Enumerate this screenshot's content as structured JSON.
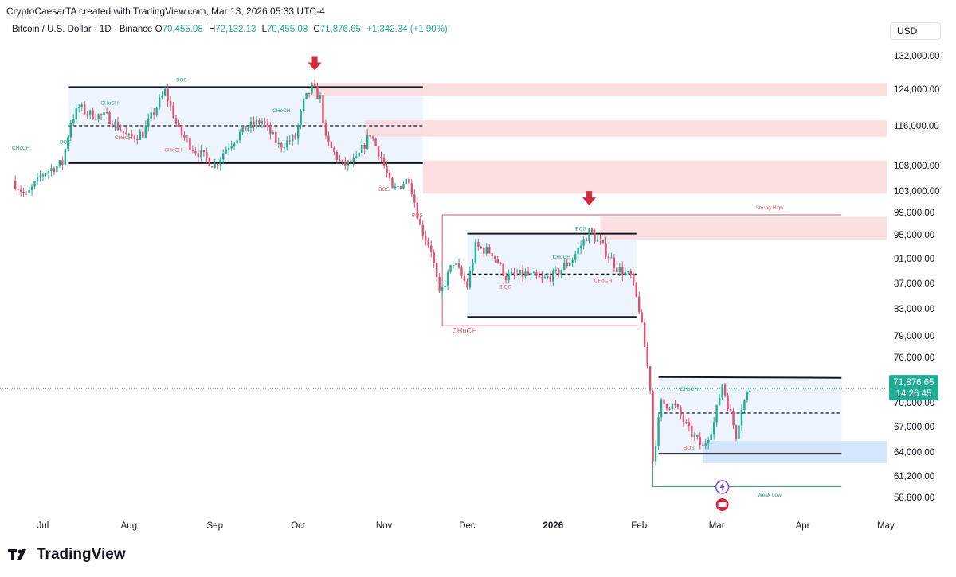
{
  "header": {
    "credit": "CryptoCaesarTA created with TradingView.com, Mar 13, 2026 05:33 UTC-4",
    "symbol": "Bitcoin / U.S. Dollar · 1D · Binance",
    "ohlc": [
      {
        "key": "O",
        "value": "70,455.08"
      },
      {
        "key": "H",
        "value": "72,132.13"
      },
      {
        "key": "L",
        "value": "70,455.08"
      },
      {
        "key": "C",
        "value": "71,876.65"
      }
    ],
    "change": "+1,342.34 (+1.90%)",
    "currency": "USD"
  },
  "footer": {
    "brand": "TradingView"
  },
  "colors": {
    "up": "#22ab94",
    "down": "#e0506a",
    "supply_zone": "#fad9dc",
    "demand_zone": "#cfe3fb",
    "range_fill": "#eef4fd",
    "price_badge": "#22ab94",
    "structure_up": "#2e9e82",
    "structure_down": "#d2585f"
  },
  "chart_data": {
    "type": "candlestick",
    "price_axis": {
      "ticks": [
        "132,000.00",
        "124,000.00",
        "116,000.00",
        "108,000.00",
        "103,000.00",
        "99,000.00",
        "95,000.00",
        "91,000.00",
        "87,000.00",
        "83,000.00",
        "79,000.00",
        "76,000.00",
        "70,000.00",
        "67,000.00",
        "64,000.00",
        "61,200.00",
        "58,800.00"
      ],
      "current_price": "71,876.65",
      "countdown": "14:26:45"
    },
    "time_axis": {
      "ticks": [
        {
          "label": "Jul",
          "date": "2025-07-01"
        },
        {
          "label": "Aug",
          "date": "2025-08-01"
        },
        {
          "label": "Sep",
          "date": "2025-09-01"
        },
        {
          "label": "Oct",
          "date": "2025-10-01"
        },
        {
          "label": "Nov",
          "date": "2025-11-01"
        },
        {
          "label": "Dec",
          "date": "2025-12-01"
        },
        {
          "label": "2026",
          "date": "2026-01-01",
          "bold": true
        },
        {
          "label": "Feb",
          "date": "2026-02-01"
        },
        {
          "label": "Mar",
          "date": "2026-03-01"
        },
        {
          "label": "Apr",
          "date": "2026-04-01"
        },
        {
          "label": "May",
          "date": "2026-05-01"
        }
      ]
    },
    "price_path": [
      [
        "2025-06-20",
        105000
      ],
      [
        "2025-06-25",
        102000
      ],
      [
        "2025-07-01",
        106500
      ],
      [
        "2025-07-08",
        108500
      ],
      [
        "2025-07-11",
        117000
      ],
      [
        "2025-07-14",
        120000
      ],
      [
        "2025-07-18",
        118500
      ],
      [
        "2025-07-24",
        118000
      ],
      [
        "2025-08-01",
        113500
      ],
      [
        "2025-08-06",
        114500
      ],
      [
        "2025-08-10",
        119000
      ],
      [
        "2025-08-14",
        123500
      ],
      [
        "2025-08-19",
        115000
      ],
      [
        "2025-08-24",
        111500
      ],
      [
        "2025-09-01",
        108000
      ],
      [
        "2025-09-05",
        111500
      ],
      [
        "2025-09-12",
        115500
      ],
      [
        "2025-09-18",
        117000
      ],
      [
        "2025-09-24",
        112000
      ],
      [
        "2025-09-30",
        113500
      ],
      [
        "2025-10-03",
        121000
      ],
      [
        "2025-10-06",
        124500
      ],
      [
        "2025-10-09",
        122000
      ],
      [
        "2025-10-11",
        113000
      ],
      [
        "2025-10-17",
        108000
      ],
      [
        "2025-10-22",
        109000
      ],
      [
        "2025-10-27",
        114500
      ],
      [
        "2025-10-31",
        109500
      ],
      [
        "2025-11-04",
        103000
      ],
      [
        "2025-11-10",
        105500
      ],
      [
        "2025-11-14",
        96500
      ],
      [
        "2025-11-18",
        92500
      ],
      [
        "2025-11-21",
        85000
      ],
      [
        "2025-11-26",
        90500
      ],
      [
        "2025-12-01",
        86500
      ],
      [
        "2025-12-04",
        93000
      ],
      [
        "2025-12-10",
        92000
      ],
      [
        "2025-12-15",
        88000
      ],
      [
        "2025-12-22",
        88500
      ],
      [
        "2025-12-28",
        87500
      ],
      [
        "2026-01-02",
        88500
      ],
      [
        "2026-01-08",
        91000
      ],
      [
        "2026-01-14",
        95500
      ],
      [
        "2026-01-18",
        93500
      ],
      [
        "2026-01-24",
        89500
      ],
      [
        "2026-01-29",
        88000
      ],
      [
        "2026-02-01",
        83000
      ],
      [
        "2026-02-05",
        72000
      ],
      [
        "2026-02-06",
        63000
      ],
      [
        "2026-02-09",
        70000
      ],
      [
        "2026-02-14",
        69500
      ],
      [
        "2026-02-19",
        66500
      ],
      [
        "2026-02-24",
        64500
      ],
      [
        "2026-02-28",
        67500
      ],
      [
        "2026-03-03",
        72500
      ],
      [
        "2026-03-06",
        68500
      ],
      [
        "2026-03-08",
        66000
      ],
      [
        "2026-03-10",
        69500
      ],
      [
        "2026-03-13",
        71876.65
      ]
    ],
    "ranges": [
      {
        "from": "2025-07-10",
        "to": "2025-11-15",
        "top": 124500,
        "mid": 116000,
        "bottom": 108500,
        "fill": true
      },
      {
        "from": "2025-12-01",
        "to": "2026-01-31",
        "top": 95200,
        "mid": 88500,
        "bottom": 81800,
        "fill": true
      },
      {
        "from": "2026-02-08",
        "to": "2026-04-15",
        "top": 73400,
        "mid": 68700,
        "bottom": 63800,
        "fill": true
      }
    ],
    "supply_zones": [
      {
        "from": "2025-10-06",
        "price_top": 125500,
        "price_bottom": 122500
      },
      {
        "from": "2025-10-25",
        "price_top": 117200,
        "price_bottom": 113800
      },
      {
        "from": "2025-11-15",
        "price_top": 109000,
        "price_bottom": 102500
      },
      {
        "from": "2026-01-18",
        "price_top": 98200,
        "price_bottom": 94200
      }
    ],
    "demand_zones": [
      {
        "from": "2026-02-24",
        "price_top": 65300,
        "price_bottom": 62700
      }
    ],
    "arrows": [
      {
        "date": "2025-10-07",
        "price": 130000
      },
      {
        "date": "2026-01-14",
        "price": 101500
      }
    ],
    "structure_labels": [
      {
        "text": "BOS",
        "date": "2025-08-20",
        "price": 125800,
        "dir": "up"
      },
      {
        "text": "CHoCH",
        "date": "2025-06-23",
        "price": 111200,
        "dir": "up"
      },
      {
        "text": "BOS",
        "date": "2025-07-09",
        "price": 112400,
        "dir": "up"
      },
      {
        "text": "CHoCH",
        "date": "2025-07-25",
        "price": 120600,
        "dir": "up"
      },
      {
        "text": "CHoCH",
        "date": "2025-09-25",
        "price": 119000,
        "dir": "up"
      },
      {
        "text": "CHoCH",
        "date": "2025-07-30",
        "price": 113300,
        "dir": "down"
      },
      {
        "text": "CHoCH",
        "date": "2025-08-17",
        "price": 110800,
        "dir": "down"
      },
      {
        "text": "BOS",
        "date": "2025-11-01",
        "price": 103000,
        "dir": "down"
      },
      {
        "text": "BOS",
        "date": "2025-11-13",
        "price": 98200,
        "dir": "down"
      },
      {
        "text": "CHoCH",
        "date": "2025-11-30",
        "price": 79400,
        "dir": "down"
      },
      {
        "text": "BOS",
        "date": "2026-01-11",
        "price": 95800,
        "dir": "up"
      },
      {
        "text": "CHoCH",
        "date": "2026-01-04",
        "price": 91000,
        "dir": "up"
      },
      {
        "text": "BOS",
        "date": "2025-12-15",
        "price": 86200,
        "dir": "down"
      },
      {
        "text": "CHoCH",
        "date": "2026-01-19",
        "price": 87200,
        "dir": "down"
      },
      {
        "text": "CHoCH",
        "date": "2026-02-19",
        "price": 71600,
        "dir": "up"
      },
      {
        "text": "BOS",
        "date": "2026-02-19",
        "price": 64300,
        "dir": "down"
      },
      {
        "text": "Strong High",
        "date": "2026-03-20",
        "price": 99600,
        "dir": "down"
      },
      {
        "text": "Weak Low",
        "date": "2026-03-20",
        "price": 58900,
        "dir": "up"
      }
    ]
  }
}
